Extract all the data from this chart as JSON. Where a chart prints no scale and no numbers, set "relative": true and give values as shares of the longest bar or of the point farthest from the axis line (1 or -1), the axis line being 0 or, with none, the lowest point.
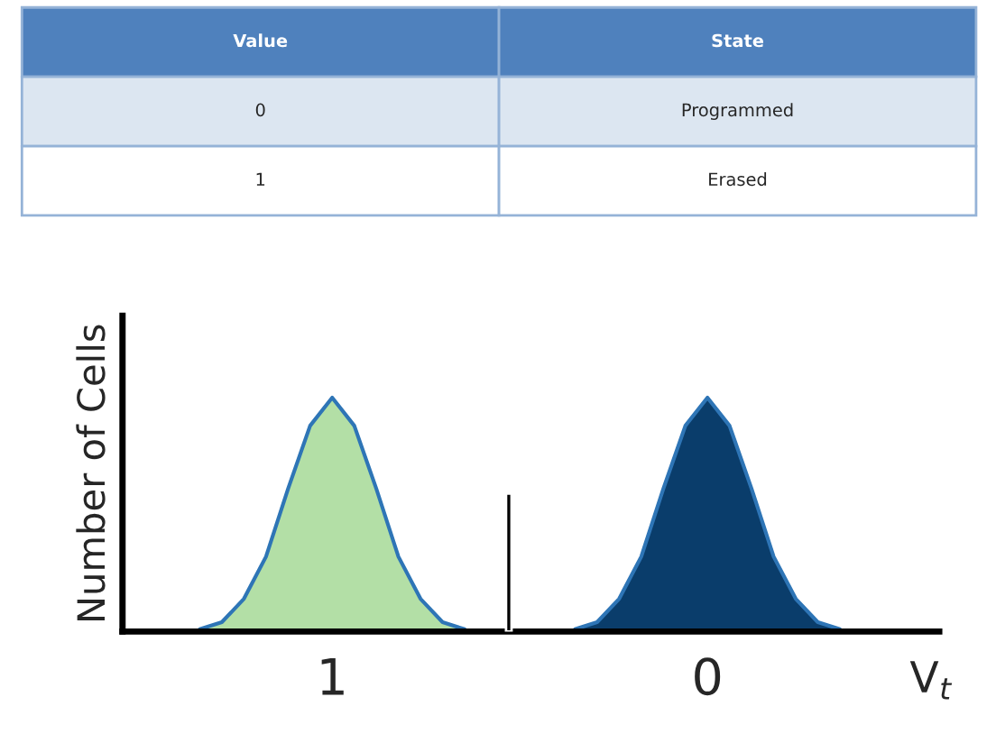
{
  "chart_data": [
    {
      "type": "other",
      "categories": [
        "Value",
        "State"
      ],
      "cell_labels": [
        [
          "0",
          "Programmed"
        ],
        [
          "1",
          "Erased"
        ]
      ]
    },
    {
      "type": "area",
      "relative": true,
      "ylabel": "Number of Cells",
      "xlabel": "V$_{t}$",
      "categories": [
        null,
        null,
        null,
        null,
        null,
        null,
        null,
        null,
        null,
        "1",
        null,
        null,
        null,
        null,
        null,
        null,
        null,
        null,
        null,
        null,
        null,
        null,
        null,
        null,
        null,
        null,
        "0",
        null,
        null,
        null,
        null,
        null,
        null,
        null,
        null,
        null,
        null
      ],
      "series": [
        {
          "type": "area",
          "color": "#b3dfa6",
          "values": [
            null,
            null,
            null,
            0.01,
            0.04,
            0.14,
            0.32,
            0.61,
            0.88,
            1,
            0.88,
            0.61,
            0.32,
            0.14,
            0.04,
            0.01,
            null,
            null,
            null,
            null,
            null,
            null,
            null,
            null,
            null,
            null,
            null,
            null,
            null,
            null,
            null,
            null,
            null,
            null,
            null,
            null,
            null
          ]
        },
        {
          "type": "area",
          "color": "#0a3d6b",
          "values": [
            null,
            null,
            null,
            null,
            null,
            null,
            null,
            null,
            null,
            null,
            null,
            null,
            null,
            null,
            null,
            null,
            null,
            null,
            null,
            null,
            0.01,
            0.04,
            0.14,
            0.32,
            0.61,
            0.88,
            1,
            0.88,
            0.61,
            0.32,
            0.14,
            0.04,
            0.01,
            null,
            null,
            null,
            null
          ]
        },
        {
          "type": "bar",
          "color": "#000000",
          "values": [
            null,
            null,
            null,
            null,
            null,
            null,
            null,
            null,
            null,
            null,
            null,
            null,
            null,
            null,
            null,
            null,
            null,
            0.59,
            null,
            null,
            null,
            null,
            null,
            null,
            null,
            null,
            null,
            null,
            null,
            null,
            null,
            null,
            null,
            null,
            null,
            null,
            null
          ]
        }
      ]
    }
  ]
}
